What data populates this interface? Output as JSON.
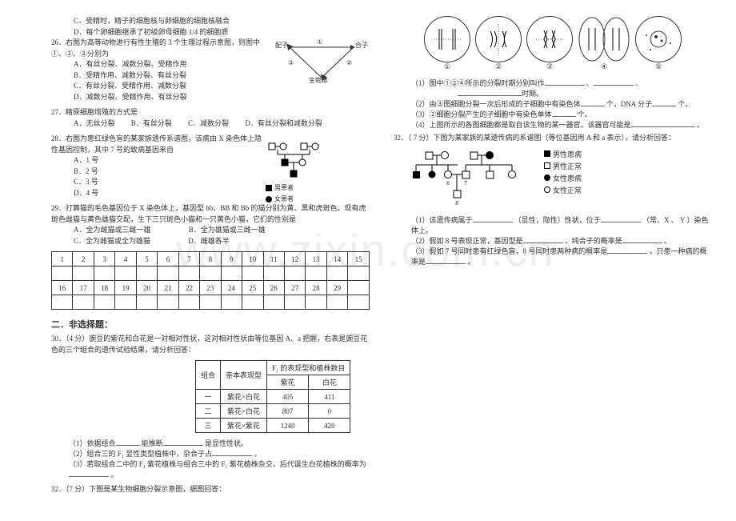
{
  "watermark": "www.zixin.com.cn",
  "left": {
    "q25_c": "C．受精时，精子的细胞核与卵细胞的细胞核融合",
    "q25_d": "D．每个卵细胞继承了初级卵母细胞 1/4 的细胞质",
    "q26": {
      "stem": "26．右图为高等动物进行有性生殖的 3 个生理过程示意图，则图中①、②、③分别为",
      "a": "A．有丝分裂、减数分裂、受精作用",
      "b": "B．受精作用、减数分裂、有丝分裂",
      "c": "C．有丝分裂、受精作用、减数分裂",
      "d": "D．减数分裂、受精作用、有丝分裂",
      "fig": {
        "peizi": "配子",
        "hezi": "合子",
        "shengwu": "生物体",
        "n1": "①",
        "n2": "②",
        "n3": "③"
      }
    },
    "q27": {
      "stem": "27．精原细胞增殖的方式是",
      "a": "A．无丝分裂",
      "b": "B．有丝分裂",
      "c": "C．减数分裂",
      "d": "D．有丝分裂和减数分裂"
    },
    "q28": {
      "stem": "28．右图为患红绿色盲的某家族遗传系谱图，该病由 X 染色体上隐性基因控制，其中 7 号的致病基因来自",
      "a": "A．1 号",
      "b": "B．2 号",
      "c": "C．3 号",
      "d": "D．4 号",
      "legend_m": "男患者",
      "legend_f": "女患者"
    },
    "q29": {
      "stem": "29．打算猫的毛色基因位于 X 染色体上，基因型 bb、BB 和 Bb 的猫分别为黄、黑和虎斑色。现有虎斑色雌猫与黄色雄猫交配，生下三只斑色小猫和一只黄色小猫，它们的性别是",
      "a": "A．全为雌猫或三雌一雄",
      "b": "B．全为雄猫或三雌一雄",
      "c": "C．全为雌猫或全为雄猫",
      "d": "D．雌雄各半"
    },
    "grid": {
      "r1": [
        "1",
        "2",
        "3",
        "4",
        "5",
        "6",
        "7",
        "8",
        "9",
        "10",
        "11",
        "12",
        "13",
        "14",
        "15"
      ],
      "r2": [
        "",
        "",
        "",
        "",
        "",
        "",
        "",
        "",
        "",
        "",
        "",
        "",
        "",
        "",
        ""
      ],
      "r3": [
        "16",
        "17",
        "18",
        "19",
        "20",
        "21",
        "22",
        "23",
        "24",
        "25",
        "26",
        "27",
        "28",
        "29",
        ""
      ],
      "r4": [
        "",
        "",
        "",
        "",
        "",
        "",
        "",
        "",
        "",
        "",
        "",
        "",
        "",
        "",
        ""
      ]
    },
    "section2": "二．非选择题：",
    "q30": {
      "stem": "30．（4 分）豌豆的紫花和白花是一对相对性状，这对相对性状由等位基因 A、a 把握，右表是豌豆花色的三个组合的遗传试验结果，请分析回答：",
      "table": {
        "h_group": "组合",
        "h_parent": "亲本表现型",
        "h_f1": "F₁ 的表现型和植株数目",
        "h_purple": "紫花",
        "h_white": "白花",
        "rows": [
          [
            "一",
            "紫花×白花",
            "405",
            "411"
          ],
          [
            "二",
            "紫花×白花",
            "807",
            "0"
          ],
          [
            "三",
            "紫花×紫花",
            "1240",
            "420"
          ]
        ]
      },
      "p1a": "（1）依据组合",
      "p1b": "能推断",
      "p1c": "是显性性状。",
      "p2a": "（2）组合三的 F₁ 显性类型植株中，杂合子占",
      "p2b": "。",
      "p3a": "（3）若取组合二中的 F₁ 紫花植株与组合三中的 F₁ 紫花植株杂交，后代诞生白花植株的概率为",
      "p3b": "。"
    },
    "q32l": "32．（7 分）下图是某生物细胞分裂示意图，据图回答："
  },
  "right": {
    "cells_labels": [
      "①",
      "②",
      "③",
      "④",
      "⑤"
    ],
    "q_cells": {
      "p1a": "（1）图中①②④所示的分裂时期分别叫作",
      "p1b": "、",
      "p1c": "、",
      "p1d": "时期。",
      "p2a": "（2）由③图细胞分裂一次后形成的子细胞中有染色体",
      "p2b": "个，DNA 分子",
      "p2c": "个。",
      "p3a": "（3）②细胞分裂产生的子细胞中有染色单体",
      "p3b": "个。",
      "p4a": "（4）上图所示的各图细胞都是取自该生物的某一器官，该器官可能是",
      "p4b": "。"
    },
    "q32r": {
      "stem": "32．（ 7 分）下图为某家族的某遗传病的系谱图（等位基因用 A 和 a 表示），请分析回答：",
      "legend": {
        "mp": "男性患病",
        "mn": "男性正常",
        "fp": "女性患病",
        "fn": "女性正常"
      },
      "p1a": "（1）该遗传病属于",
      "p1b": "（显性，隐性）性状，位于",
      "p1c": "（常、X 、 Y ）染色体上。",
      "p2a": "（2）假如 8 号表现正常，基因型是",
      "p2b": "，纯合子的概率是",
      "p2c": "。",
      "p3a": "（3）假如 7 号同时患有红绿色盲，8 号同时患两种病的概率是",
      "p3b": "，只患一种病的概率是",
      "p3c": "。"
    }
  }
}
